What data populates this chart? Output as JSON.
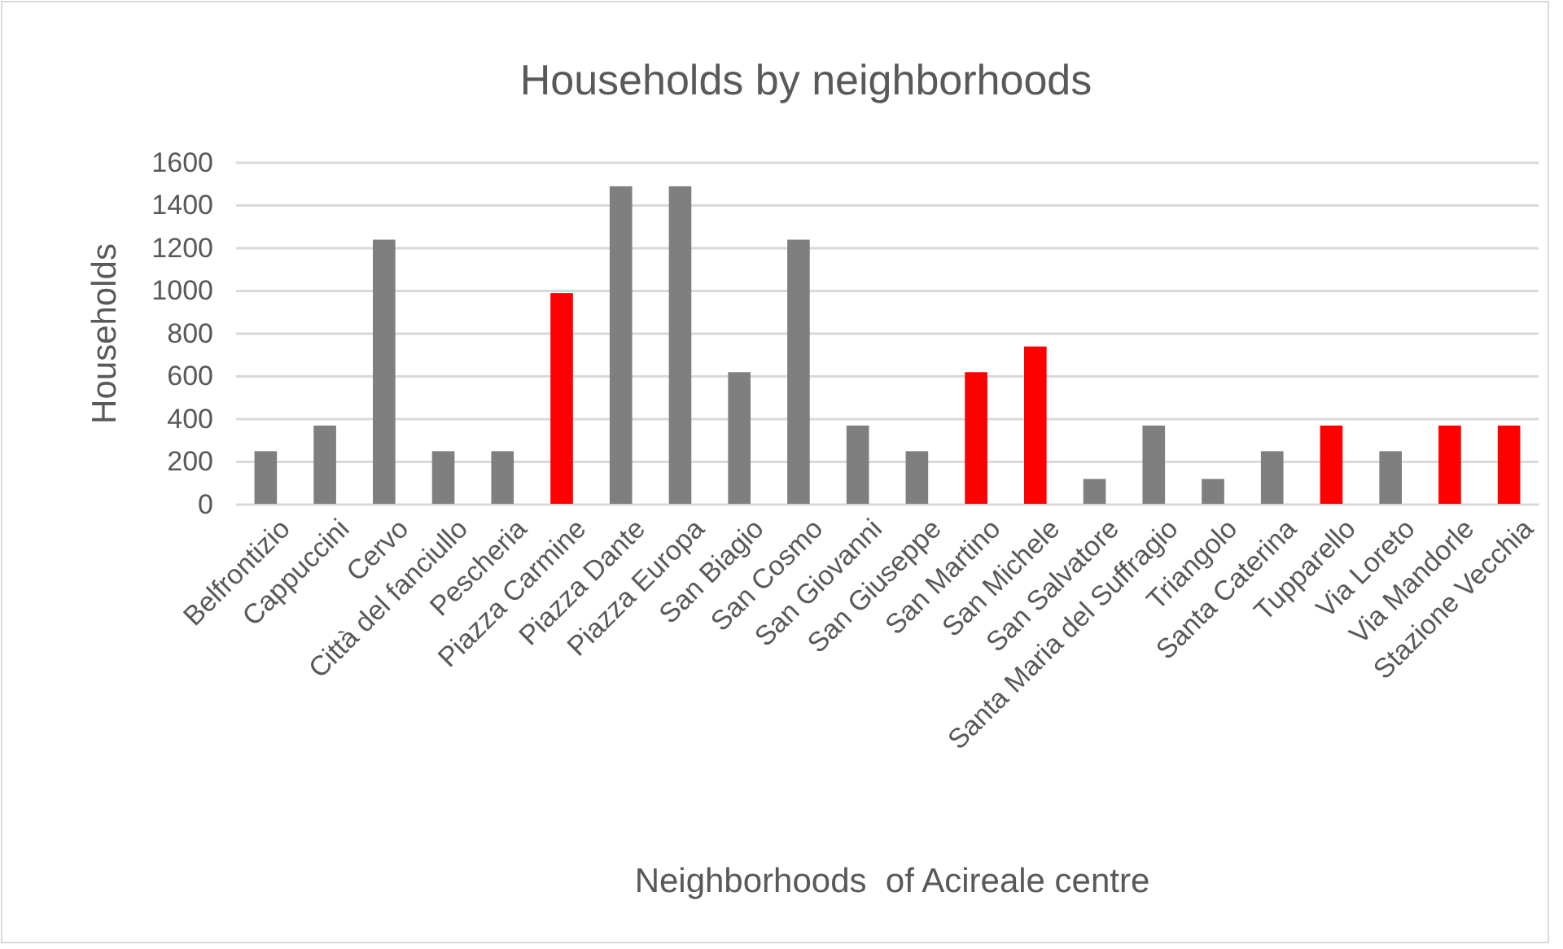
{
  "chart_data": {
    "type": "bar",
    "title": "Households by neighborhoods",
    "xlabel": "Neighborhoods  of Acireale centre",
    "ylabel": "Households",
    "categories": [
      "Belfrontizio",
      "Cappuccini",
      "Cervo",
      "Città del fanciullo",
      "Pescheria",
      "Piazza Carmine",
      "Piazza Dante",
      "Piazza Europa",
      "San Biagio",
      "San Cosmo",
      "San Giovanni",
      "San Giuseppe",
      "San Martino",
      "San Michele",
      "San Salvatore",
      "Santa Maria del Suffragio",
      "Triangolo",
      "Santa Caterina",
      "Tupparello",
      "Via Loreto",
      "Via Mandorle",
      "Stazione Vecchia"
    ],
    "values": [
      250,
      370,
      1240,
      250,
      250,
      990,
      1490,
      1490,
      620,
      1240,
      370,
      250,
      620,
      740,
      120,
      370,
      120,
      250,
      370,
      250,
      370,
      370
    ],
    "colors": [
      "#7f7f7f",
      "#7f7f7f",
      "#7f7f7f",
      "#7f7f7f",
      "#7f7f7f",
      "#ff0000",
      "#7f7f7f",
      "#7f7f7f",
      "#7f7f7f",
      "#7f7f7f",
      "#7f7f7f",
      "#7f7f7f",
      "#ff0000",
      "#ff0000",
      "#7f7f7f",
      "#7f7f7f",
      "#7f7f7f",
      "#7f7f7f",
      "#ff0000",
      "#7f7f7f",
      "#ff0000",
      "#ff0000"
    ],
    "ylim": [
      0,
      1600
    ],
    "yticks": [
      0,
      200,
      400,
      600,
      800,
      1000,
      1200,
      1400,
      1600
    ],
    "grid": "y"
  }
}
